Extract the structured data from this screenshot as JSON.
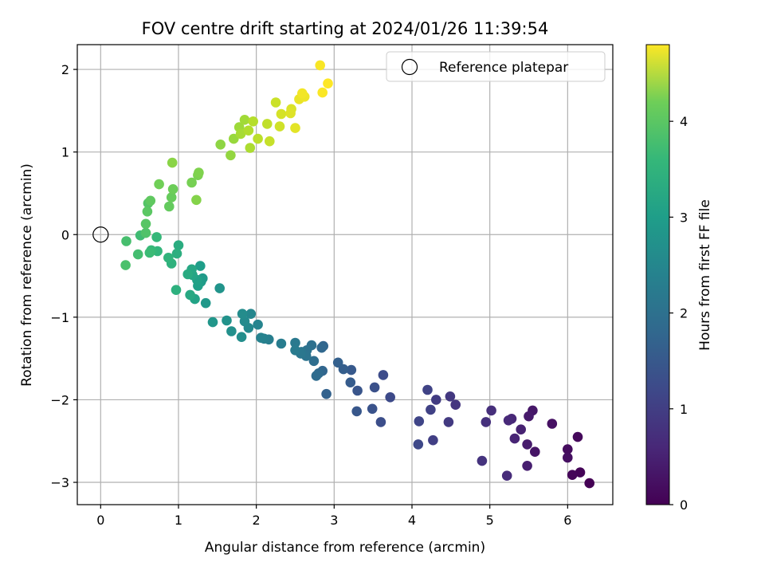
{
  "chart_data": {
    "type": "scatter",
    "title": "FOV centre drift starting at 2024/01/26 11:39:54",
    "xlabel": "Angular distance from reference (arcmin)",
    "ylabel": "Rotation from reference (arcmin)",
    "xlim": [
      -0.3,
      6.58
    ],
    "ylim": [
      -3.27,
      2.3
    ],
    "xticks": [
      0,
      1,
      2,
      3,
      4,
      5,
      6
    ],
    "yticks": [
      -3,
      -2,
      -1,
      0,
      1,
      2
    ],
    "xtick_labels": [
      "0",
      "1",
      "2",
      "3",
      "4",
      "5",
      "6"
    ],
    "ytick_labels": [
      "−3",
      "−2",
      "−1",
      "0",
      "1",
      "2"
    ],
    "grid": true,
    "legend": {
      "position": "top-right",
      "entries": [
        "Reference platepar"
      ]
    },
    "reference_point": {
      "x": 0,
      "y": 0,
      "label": "Reference platepar"
    },
    "colorbar": {
      "label": "Hours from first FF file",
      "colormap": "viridis",
      "range": [
        0,
        4.8
      ],
      "ticks": [
        0,
        1,
        2,
        3,
        4
      ],
      "tick_labels": [
        "0",
        "1",
        "2",
        "3",
        "4"
      ]
    },
    "series": [
      {
        "x": [
          6.28,
          6.16,
          6.06,
          6.13,
          6.0,
          6.0,
          5.8,
          5.58,
          5.55,
          5.5,
          5.48,
          5.48,
          5.4,
          5.32,
          5.28,
          5.24,
          5.22,
          5.02,
          4.95,
          4.9,
          4.56,
          4.49,
          4.47,
          4.31,
          4.27,
          4.24,
          4.2,
          4.09,
          4.08,
          3.72,
          3.63,
          3.6,
          3.52,
          3.49,
          3.3,
          3.29,
          3.22,
          3.21,
          3.12,
          3.05,
          2.9,
          2.86,
          2.85,
          2.84,
          2.8,
          2.77,
          2.74,
          2.71,
          2.65,
          2.64,
          2.58,
          2.57,
          2.5,
          2.5,
          2.32,
          2.16,
          2.1,
          2.06,
          2.02,
          1.93,
          1.9,
          1.85,
          1.82,
          1.81,
          1.68,
          1.62,
          1.53,
          1.44,
          1.35,
          1.31,
          1.29,
          1.28,
          1.25,
          1.24,
          1.21,
          1.18,
          1.17,
          1.15,
          1.12,
          1.0,
          0.98,
          0.97,
          0.91,
          0.87,
          0.73,
          0.72,
          0.65,
          0.63,
          0.51,
          0.48,
          0.33,
          0.32,
          0.58,
          0.61,
          0.58,
          0.6,
          0.64,
          0.88,
          0.91,
          0.93,
          0.75,
          1.17,
          1.25,
          1.26,
          1.23,
          0.92,
          1.54,
          1.67,
          1.71,
          1.78,
          1.85,
          1.8,
          1.92,
          1.9,
          1.96,
          2.02,
          2.14,
          2.17,
          2.25,
          2.3,
          2.32,
          2.45,
          2.44,
          2.5,
          2.55,
          2.62,
          2.59,
          2.82,
          2.85,
          2.92
        ],
        "y": [
          -3.01,
          -2.88,
          -2.91,
          -2.45,
          -2.6,
          -2.7,
          -2.29,
          -2.63,
          -2.13,
          -2.2,
          -2.54,
          -2.8,
          -2.36,
          -2.47,
          -2.23,
          -2.25,
          -2.92,
          -2.13,
          -2.27,
          -2.74,
          -2.06,
          -1.96,
          -2.27,
          -2.0,
          -2.49,
          -2.12,
          -1.88,
          -2.26,
          -2.54,
          -1.97,
          -1.7,
          -2.27,
          -1.85,
          -2.11,
          -1.89,
          -2.14,
          -1.64,
          -1.79,
          -1.63,
          -1.55,
          -1.93,
          -1.35,
          -1.65,
          -1.37,
          -1.68,
          -1.71,
          -1.53,
          -1.34,
          -1.4,
          -1.47,
          -1.42,
          -1.44,
          -1.31,
          -1.4,
          -1.32,
          -1.27,
          -1.26,
          -1.25,
          -1.09,
          -0.96,
          -1.13,
          -1.05,
          -0.96,
          -1.24,
          -1.17,
          -1.04,
          -0.65,
          -1.06,
          -0.83,
          -0.53,
          -0.57,
          -0.38,
          -0.62,
          -0.55,
          -0.78,
          -0.49,
          -0.42,
          -0.73,
          -0.48,
          -0.13,
          -0.23,
          -0.67,
          -0.35,
          -0.28,
          -0.2,
          -0.03,
          -0.19,
          -0.22,
          -0.01,
          -0.24,
          -0.08,
          -0.37,
          0.02,
          0.38,
          0.13,
          0.28,
          0.41,
          0.34,
          0.45,
          0.55,
          0.61,
          0.63,
          0.72,
          0.75,
          0.42,
          0.87,
          1.09,
          0.96,
          1.16,
          1.3,
          1.39,
          1.22,
          1.05,
          1.26,
          1.37,
          1.16,
          1.34,
          1.13,
          1.6,
          1.31,
          1.46,
          1.52,
          1.47,
          1.29,
          1.64,
          1.67,
          1.71,
          2.05,
          1.72,
          1.83
        ],
        "hours": [
          0.0,
          0.04,
          0.07,
          0.11,
          0.15,
          0.19,
          0.22,
          0.26,
          0.3,
          0.34,
          0.37,
          0.41,
          0.45,
          0.49,
          0.52,
          0.56,
          0.6,
          0.64,
          0.67,
          0.71,
          0.75,
          0.79,
          0.82,
          0.86,
          0.9,
          0.94,
          0.97,
          1.01,
          1.05,
          1.09,
          1.12,
          1.16,
          1.2,
          1.24,
          1.27,
          1.31,
          1.35,
          1.39,
          1.42,
          1.46,
          1.5,
          1.54,
          1.57,
          1.61,
          1.65,
          1.69,
          1.72,
          1.76,
          1.8,
          1.84,
          1.87,
          1.91,
          1.95,
          1.99,
          2.02,
          2.06,
          2.1,
          2.14,
          2.17,
          2.21,
          2.25,
          2.29,
          2.32,
          2.36,
          2.4,
          2.44,
          2.47,
          2.51,
          2.55,
          2.59,
          2.62,
          2.66,
          2.7,
          2.74,
          2.77,
          2.81,
          2.85,
          2.89,
          2.92,
          2.96,
          3.0,
          3.04,
          3.07,
          3.11,
          3.15,
          3.19,
          3.22,
          3.26,
          3.3,
          3.34,
          3.37,
          3.41,
          3.45,
          3.49,
          3.52,
          3.56,
          3.6,
          3.64,
          3.67,
          3.71,
          3.75,
          3.79,
          3.82,
          3.86,
          3.9,
          3.94,
          3.97,
          4.01,
          4.05,
          4.09,
          4.12,
          4.16,
          4.2,
          4.24,
          4.27,
          4.31,
          4.35,
          4.39,
          4.42,
          4.46,
          4.5,
          4.54,
          4.57,
          4.61,
          4.65,
          4.69,
          4.72,
          4.76,
          4.78,
          4.8
        ]
      }
    ]
  }
}
